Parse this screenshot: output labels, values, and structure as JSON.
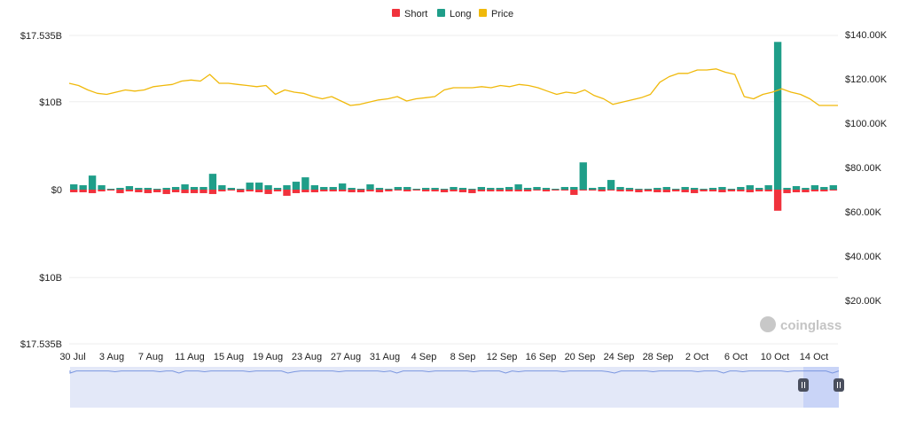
{
  "legend": [
    {
      "label": "Short",
      "color": "#f0323c"
    },
    {
      "label": "Long",
      "color": "#1f9e89"
    },
    {
      "label": "Price",
      "color": "#f0b90b"
    }
  ],
  "watermark": "coinglass",
  "chart_data": {
    "type": "bar",
    "subtype": "diverging bar + line (dual axis)",
    "left_axis_ticks": [
      "$17.535B",
      "$10B",
      "$0",
      "$10B",
      "$17.535B"
    ],
    "right_axis_ticks": [
      "$140.00K",
      "$120.00K",
      "$100.00K",
      "$80.00K",
      "$60.00K",
      "$40.00K",
      "$20.00K"
    ],
    "ylim_left_billions": [
      -17.535,
      17.535
    ],
    "ylim_right_usd": [
      0,
      140000
    ],
    "x_tick_labels": [
      "30 Jul",
      "3 Aug",
      "7 Aug",
      "11 Aug",
      "15 Aug",
      "19 Aug",
      "23 Aug",
      "27 Aug",
      "31 Aug",
      "4 Sep",
      "8 Sep",
      "12 Sep",
      "16 Sep",
      "20 Sep",
      "24 Sep",
      "28 Sep",
      "2 Oct",
      "6 Oct",
      "10 Oct",
      "14 Oct"
    ],
    "gridlines": "horizontal",
    "legend_position": "top-center",
    "series": [
      {
        "name": "Long",
        "unit": "billion USD",
        "values": [
          0.6,
          0.5,
          1.6,
          0.5,
          0.1,
          0.2,
          0.4,
          0.2,
          0.2,
          0.1,
          0.2,
          0.3,
          0.6,
          0.3,
          0.3,
          1.8,
          0.5,
          0.2,
          0.1,
          0.8,
          0.8,
          0.5,
          0.2,
          0.5,
          0.9,
          1.4,
          0.5,
          0.3,
          0.3,
          0.7,
          0.2,
          0.1,
          0.6,
          0.2,
          0.1,
          0.3,
          0.3,
          0.1,
          0.2,
          0.2,
          0.1,
          0.3,
          0.2,
          0.1,
          0.3,
          0.2,
          0.2,
          0.3,
          0.6,
          0.2,
          0.3,
          0.2,
          0.1,
          0.3,
          0.3,
          3.1,
          0.2,
          0.3,
          1.1,
          0.3,
          0.2,
          0.1,
          0.1,
          0.2,
          0.3,
          0.1,
          0.3,
          0.2,
          0.1,
          0.2,
          0.3,
          0.1,
          0.3,
          0.5,
          0.2,
          0.5,
          16.8,
          0.2,
          0.4,
          0.2,
          0.5,
          0.3,
          0.5
        ]
      },
      {
        "name": "Short",
        "unit": "billion USD",
        "values": [
          -0.3,
          -0.3,
          -0.4,
          -0.2,
          -0.1,
          -0.4,
          -0.2,
          -0.3,
          -0.4,
          -0.3,
          -0.5,
          -0.3,
          -0.4,
          -0.4,
          -0.4,
          -0.5,
          -0.2,
          -0.1,
          -0.3,
          -0.2,
          -0.3,
          -0.5,
          -0.2,
          -0.7,
          -0.4,
          -0.3,
          -0.3,
          -0.2,
          -0.2,
          -0.2,
          -0.3,
          -0.3,
          -0.2,
          -0.3,
          -0.2,
          -0.1,
          -0.2,
          -0.1,
          -0.2,
          -0.2,
          -0.3,
          -0.2,
          -0.3,
          -0.4,
          -0.2,
          -0.2,
          -0.2,
          -0.2,
          -0.2,
          -0.2,
          -0.1,
          -0.2,
          -0.1,
          -0.1,
          -0.6,
          -0.1,
          -0.1,
          -0.2,
          -0.1,
          -0.2,
          -0.2,
          -0.3,
          -0.2,
          -0.3,
          -0.3,
          -0.2,
          -0.3,
          -0.4,
          -0.2,
          -0.2,
          -0.3,
          -0.2,
          -0.2,
          -0.3,
          -0.2,
          -0.2,
          -2.4,
          -0.4,
          -0.3,
          -0.3,
          -0.2,
          -0.2,
          -0.1
        ]
      },
      {
        "name": "Price",
        "unit": "USD",
        "values": [
          118000,
          117000,
          115000,
          113500,
          113000,
          114000,
          115000,
          114500,
          115000,
          116500,
          117000,
          117500,
          119000,
          119500,
          119000,
          122000,
          118000,
          118000,
          117500,
          117000,
          116500,
          117000,
          113000,
          115000,
          114000,
          113500,
          112000,
          111000,
          112000,
          110000,
          108000,
          108500,
          109500,
          110500,
          111000,
          112000,
          110000,
          111000,
          111500,
          112000,
          115000,
          116000,
          116000,
          116000,
          116500,
          116000,
          117000,
          116500,
          117500,
          117000,
          116000,
          114500,
          113000,
          114000,
          113500,
          115000,
          112500,
          111000,
          108500,
          109500,
          110500,
          111500,
          113000,
          118500,
          121000,
          122500,
          122500,
          124000,
          124000,
          124500,
          123000,
          122000,
          112000,
          111000,
          113000,
          114000,
          115500,
          114000,
          113000,
          111000,
          108000,
          108000,
          108000
        ]
      }
    ]
  }
}
